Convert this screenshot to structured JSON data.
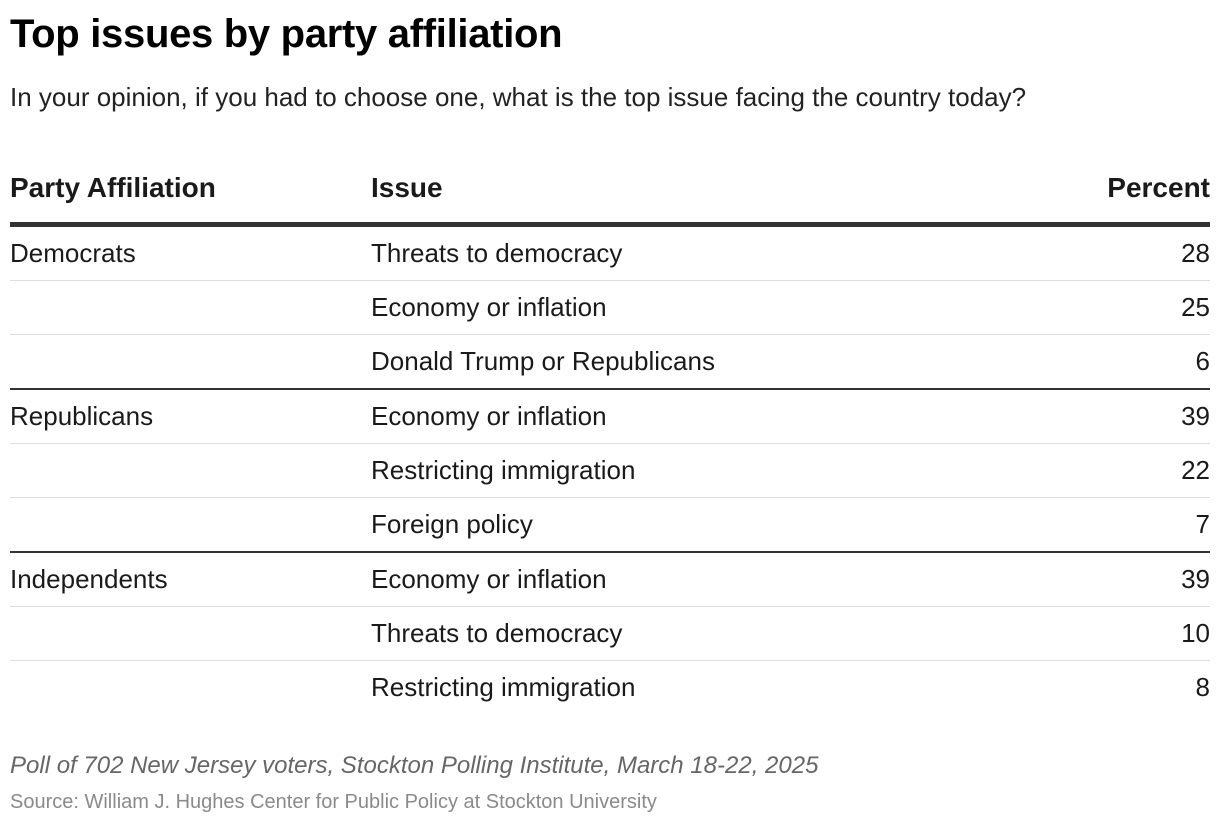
{
  "title": "Top issues by party affiliation",
  "subtitle": "In your opinion, if you had to choose one, what is the top issue facing the country today?",
  "headers": {
    "party": "Party Affiliation",
    "issue": "Issue",
    "percent": "Percent"
  },
  "rows": [
    {
      "party": "Democrats",
      "issue": "Threats to democracy",
      "percent": "28"
    },
    {
      "party": "",
      "issue": "Economy or inflation",
      "percent": "25"
    },
    {
      "party": "",
      "issue": "Donald Trump or Republicans",
      "percent": "6"
    },
    {
      "party": "Republicans",
      "issue": "Economy or inflation",
      "percent": "39"
    },
    {
      "party": "",
      "issue": "Restricting immigration",
      "percent": "22"
    },
    {
      "party": "",
      "issue": "Foreign policy",
      "percent": "7"
    },
    {
      "party": "Independents",
      "issue": "Economy or inflation",
      "percent": "39"
    },
    {
      "party": "",
      "issue": "Threats to democracy",
      "percent": "10"
    },
    {
      "party": "",
      "issue": "Restricting immigration",
      "percent": "8"
    }
  ],
  "note": "Poll of 702 New Jersey voters, Stockton Polling Institute, March 18-22, 2025",
  "source": "Source: William J. Hughes Center for Public Policy at Stockton University",
  "chart_data": {
    "type": "table",
    "title": "Top issues by party affiliation",
    "columns": [
      "Party Affiliation",
      "Issue",
      "Percent"
    ],
    "groups": [
      {
        "name": "Democrats",
        "categories": [
          "Threats to democracy",
          "Economy or inflation",
          "Donald Trump or Republicans"
        ],
        "values": [
          28,
          25,
          6
        ]
      },
      {
        "name": "Republicans",
        "categories": [
          "Economy or inflation",
          "Restricting immigration",
          "Foreign policy"
        ],
        "values": [
          39,
          22,
          7
        ]
      },
      {
        "name": "Independents",
        "categories": [
          "Economy or inflation",
          "Threats to democracy",
          "Restricting immigration"
        ],
        "values": [
          39,
          10,
          8
        ]
      }
    ]
  }
}
